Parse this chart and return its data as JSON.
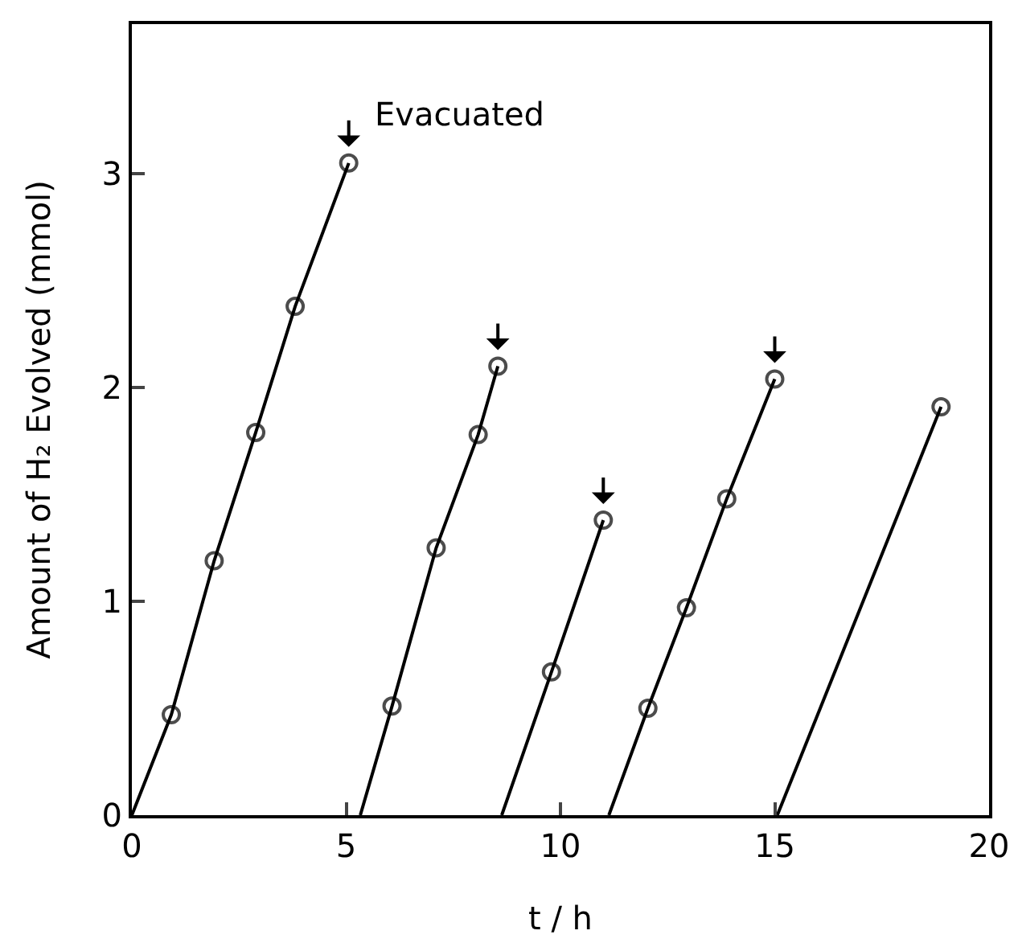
{
  "chart_data": {
    "type": "line",
    "xlabel": "t / h",
    "ylabel": "Amount of H₂ Evolved (mmol)",
    "xlim": [
      0,
      20
    ],
    "xticks": [
      0,
      5,
      10,
      15,
      20
    ],
    "ylim": [
      0,
      3.7
    ],
    "yticks": [
      0,
      1,
      2,
      3
    ],
    "grid": false,
    "marker": "circle",
    "line_style": "solid",
    "series": [
      {
        "color": "#000000",
        "x": [
          0,
          0.92,
          1.92,
          2.89,
          3.81,
          5.06
        ],
        "values": [
          0,
          0.47,
          1.19,
          1.79,
          2.38,
          3.05
        ]
      },
      {
        "color": "#000000",
        "x": [
          5.33,
          6.07,
          7.1,
          8.08,
          8.54
        ],
        "values": [
          0,
          0.51,
          1.25,
          1.78,
          2.1
        ]
      },
      {
        "color": "#000000",
        "x": [
          8.63,
          9.79,
          11.0
        ],
        "values": [
          0,
          0.67,
          1.38
        ]
      },
      {
        "color": "#000000",
        "x": [
          11.13,
          12.04,
          12.94,
          13.88,
          15.0
        ],
        "values": [
          0,
          0.5,
          0.97,
          1.48,
          2.04
        ]
      },
      {
        "color": "#000000",
        "x": [
          15.06,
          18.88
        ],
        "values": [
          0,
          1.91
        ]
      }
    ],
    "annotations": [
      {
        "text": "Evacuated",
        "x": 5.06,
        "y": 3.05
      }
    ]
  }
}
